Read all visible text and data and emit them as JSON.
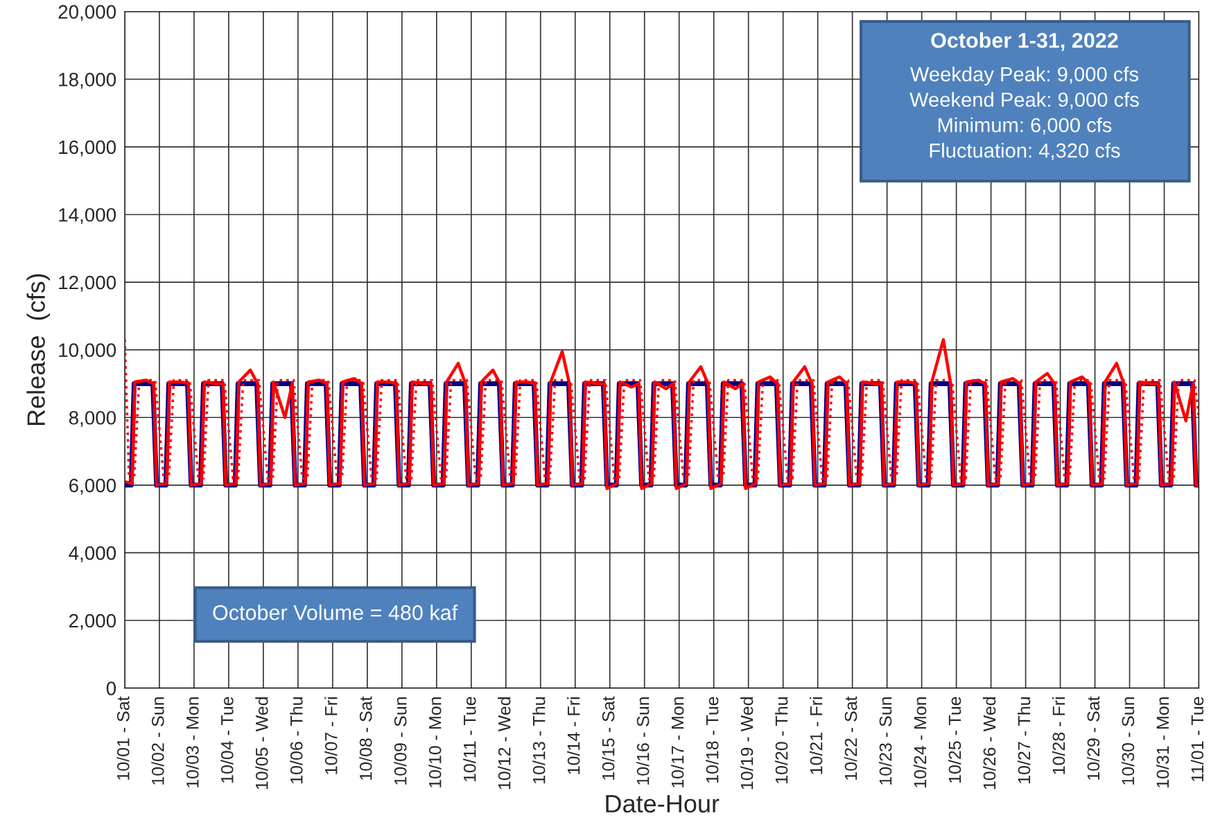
{
  "chart_data": {
    "type": "line",
    "xlabel": "Date-Hour",
    "ylabel": "Release  (cfs)",
    "xlim": [
      "2022-10-01",
      "2022-11-01"
    ],
    "ylim": [
      0,
      20000
    ],
    "xticks": [
      {
        "value": "2022-10-01",
        "label": "10/01 - Sat"
      },
      {
        "value": "2022-10-02",
        "label": "10/02 - Sun"
      },
      {
        "value": "2022-10-03",
        "label": "10/03 - Mon"
      },
      {
        "value": "2022-10-04",
        "label": "10/04 - Tue"
      },
      {
        "value": "2022-10-05",
        "label": "10/05 - Wed"
      },
      {
        "value": "2022-10-06",
        "label": "10/06 - Thu"
      },
      {
        "value": "2022-10-07",
        "label": "10/07 - Fri"
      },
      {
        "value": "2022-10-08",
        "label": "10/08 - Sat"
      },
      {
        "value": "2022-10-09",
        "label": "10/09 - Sun"
      },
      {
        "value": "2022-10-10",
        "label": "10/10 - Mon"
      },
      {
        "value": "2022-10-11",
        "label": "10/11 - Tue"
      },
      {
        "value": "2022-10-12",
        "label": "10/12 - Wed"
      },
      {
        "value": "2022-10-13",
        "label": "10/13 - Thu"
      },
      {
        "value": "2022-10-14",
        "label": "10/14 - Fri"
      },
      {
        "value": "2022-10-15",
        "label": "10/15 - Sat"
      },
      {
        "value": "2022-10-16",
        "label": "10/16 - Sun"
      },
      {
        "value": "2022-10-17",
        "label": "10/17 - Mon"
      },
      {
        "value": "2022-10-18",
        "label": "10/18 - Tue"
      },
      {
        "value": "2022-10-19",
        "label": "10/19 - Wed"
      },
      {
        "value": "2022-10-20",
        "label": "10/20 - Thu"
      },
      {
        "value": "2022-10-21",
        "label": "10/21 - Fri"
      },
      {
        "value": "2022-10-22",
        "label": "10/22 - Sat"
      },
      {
        "value": "2022-10-23",
        "label": "10/23 - Sun"
      },
      {
        "value": "2022-10-24",
        "label": "10/24 - Mon"
      },
      {
        "value": "2022-10-25",
        "label": "10/25 - Tue"
      },
      {
        "value": "2022-10-26",
        "label": "10/26 - Wed"
      },
      {
        "value": "2022-10-27",
        "label": "10/27 - Thu"
      },
      {
        "value": "2022-10-28",
        "label": "10/28 - Fri"
      },
      {
        "value": "2022-10-29",
        "label": "10/29 - Sat"
      },
      {
        "value": "2022-10-30",
        "label": "10/30 - Sun"
      },
      {
        "value": "2022-10-31",
        "label": "10/31 - Mon"
      },
      {
        "value": "2022-11-01",
        "label": "11/01 - Tue"
      }
    ],
    "yticks": [
      0,
      {
        "value": 2000,
        "label": "2,000"
      },
      {
        "value": 4000,
        "label": "4,000"
      },
      {
        "value": 6000,
        "label": "6,000"
      },
      {
        "value": 8000,
        "label": "8,000"
      },
      {
        "value": 10000,
        "label": "10,000"
      },
      {
        "value": 12000,
        "label": "12,000"
      },
      {
        "value": 14000,
        "label": "14,000"
      },
      {
        "value": 16000,
        "label": "16,000"
      },
      {
        "value": 18000,
        "label": "18,000"
      },
      {
        "value": 20000,
        "label": "20,000"
      }
    ],
    "grid": true,
    "marker": "none",
    "annotations": [
      "October 1-31, 2022",
      "Weekday Peak: 9,000 cfs\nWeekend Peak: 9,000 cfs\nMinimum: 6,000 cfs\nFluctuation: 4,320 cfs",
      "October Volume = 480 kaf"
    ],
    "series": [
      {
        "color": "#00008b",
        "line_style": "solid",
        "x": [
          "2022-10-01T00:00",
          "2022-10-01T04:30",
          "2022-10-01T06:30",
          "2022-10-01T19:30",
          "2022-10-01T22:00",
          "2022-10-02T04:30",
          "2022-10-02T06:30",
          "2022-10-02T19:30",
          "2022-10-02T22:00",
          "2022-10-03T04:30",
          "2022-10-03T06:30",
          "2022-10-03T19:30",
          "2022-10-03T22:00",
          "2022-10-04T04:30",
          "2022-10-04T06:30",
          "2022-10-04T19:30",
          "2022-10-04T22:00",
          "2022-10-05T04:30",
          "2022-10-05T06:30",
          "2022-10-05T19:30",
          "2022-10-05T22:00",
          "2022-10-06T04:30",
          "2022-10-06T06:30",
          "2022-10-06T19:30",
          "2022-10-06T22:00",
          "2022-10-07T04:30",
          "2022-10-07T06:30",
          "2022-10-07T19:30",
          "2022-10-07T22:00",
          "2022-10-08T04:30",
          "2022-10-08T06:30",
          "2022-10-08T19:30",
          "2022-10-08T22:00",
          "2022-10-09T04:30",
          "2022-10-09T06:30",
          "2022-10-09T19:30",
          "2022-10-09T22:00",
          "2022-10-10T04:30",
          "2022-10-10T06:30",
          "2022-10-10T19:30",
          "2022-10-10T22:00",
          "2022-10-11T04:30",
          "2022-10-11T06:30",
          "2022-10-11T19:30",
          "2022-10-11T22:00",
          "2022-10-12T04:30",
          "2022-10-12T06:30",
          "2022-10-12T19:30",
          "2022-10-12T22:00",
          "2022-10-13T04:30",
          "2022-10-13T06:30",
          "2022-10-13T19:30",
          "2022-10-13T22:00",
          "2022-10-14T04:30",
          "2022-10-14T06:30",
          "2022-10-14T19:30",
          "2022-10-14T22:00",
          "2022-10-15T04:30",
          "2022-10-15T06:30",
          "2022-10-15T19:30",
          "2022-10-15T22:00",
          "2022-10-16T04:30",
          "2022-10-16T06:30",
          "2022-10-16T19:30",
          "2022-10-16T22:00",
          "2022-10-17T04:30",
          "2022-10-17T06:30",
          "2022-10-17T19:30",
          "2022-10-17T22:00",
          "2022-10-18T04:30",
          "2022-10-18T06:30",
          "2022-10-18T19:30",
          "2022-10-18T22:00",
          "2022-10-19T04:30",
          "2022-10-19T06:30",
          "2022-10-19T19:30",
          "2022-10-19T22:00",
          "2022-10-20T04:30",
          "2022-10-20T06:30",
          "2022-10-20T19:30",
          "2022-10-20T22:00",
          "2022-10-21T04:30",
          "2022-10-21T06:30",
          "2022-10-21T19:30",
          "2022-10-21T22:00",
          "2022-10-22T04:30",
          "2022-10-22T06:30",
          "2022-10-22T19:30",
          "2022-10-22T22:00",
          "2022-10-23T04:30",
          "2022-10-23T06:30",
          "2022-10-23T19:30",
          "2022-10-23T22:00",
          "2022-10-24T04:30",
          "2022-10-24T06:30",
          "2022-10-24T19:30",
          "2022-10-24T22:00",
          "2022-10-25T04:30",
          "2022-10-25T06:30",
          "2022-10-25T19:30",
          "2022-10-25T22:00",
          "2022-10-26T04:30",
          "2022-10-26T06:30",
          "2022-10-26T19:30",
          "2022-10-26T22:00",
          "2022-10-27T04:30",
          "2022-10-27T06:30",
          "2022-10-27T19:30",
          "2022-10-27T22:00",
          "2022-10-28T04:30",
          "2022-10-28T06:30",
          "2022-10-28T19:30",
          "2022-10-28T22:00",
          "2022-10-29T04:30",
          "2022-10-29T06:30",
          "2022-10-29T19:30",
          "2022-10-29T22:00",
          "2022-10-30T04:30",
          "2022-10-30T06:30",
          "2022-10-30T19:30",
          "2022-10-30T22:00",
          "2022-10-31T04:30",
          "2022-10-31T06:30",
          "2022-10-31T19:30",
          "2022-10-31T22:00",
          "2022-11-01T00:00"
        ],
        "values": [
          6000,
          6000,
          9000,
          9000,
          6000,
          6000,
          9000,
          9000,
          6000,
          6000,
          9000,
          9000,
          6000,
          6000,
          9000,
          9000,
          6000,
          6000,
          9000,
          9000,
          6000,
          6000,
          9000,
          9000,
          6000,
          6000,
          9000,
          9000,
          6000,
          6000,
          9000,
          9000,
          6000,
          6000,
          9000,
          9000,
          6000,
          6000,
          9000,
          9000,
          6000,
          6000,
          9000,
          9000,
          6000,
          6000,
          9000,
          9000,
          6000,
          6000,
          9000,
          9000,
          6000,
          6000,
          9000,
          9000,
          6000,
          6000,
          9000,
          9000,
          6000,
          6000,
          9000,
          9000,
          6000,
          6000,
          9000,
          9000,
          6000,
          6000,
          9000,
          9000,
          6000,
          6000,
          9000,
          9000,
          6000,
          6000,
          9000,
          9000,
          6000,
          6000,
          9000,
          9000,
          6000,
          6000,
          9000,
          9000,
          6000,
          6000,
          9000,
          9000,
          6000,
          6000,
          9000,
          9000,
          6000,
          6000,
          9000,
          9000,
          6000,
          6000,
          9000,
          9000,
          6000,
          6000,
          9000,
          9000,
          6000,
          6000,
          9000,
          9000,
          6000,
          6000,
          9000,
          9000,
          6000,
          6000,
          9000,
          9000,
          6000,
          6000,
          9000,
          9000,
          6000,
          6000
        ]
      },
      {
        "color": "#ff0000",
        "line_style": "solid",
        "x": [
          "2022-10-01T00:00",
          "2022-10-01T05:00",
          "2022-10-01T07:00",
          "2022-10-01T15:00",
          "2022-10-01T20:00",
          "2022-10-01T22:00",
          "2022-10-02T05:00",
          "2022-10-02T07:00",
          "2022-10-02T15:00",
          "2022-10-02T20:00",
          "2022-10-02T22:00",
          "2022-10-03T05:00",
          "2022-10-03T07:00",
          "2022-10-03T15:00",
          "2022-10-03T20:00",
          "2022-10-03T22:00",
          "2022-10-04T05:00",
          "2022-10-04T07:00",
          "2022-10-04T15:00",
          "2022-10-04T20:00",
          "2022-10-04T22:00",
          "2022-10-05T05:00",
          "2022-10-05T07:00",
          "2022-10-05T15:00",
          "2022-10-05T20:00",
          "2022-10-05T22:00",
          "2022-10-06T05:00",
          "2022-10-06T07:00",
          "2022-10-06T15:00",
          "2022-10-06T20:00",
          "2022-10-06T22:00",
          "2022-10-07T05:00",
          "2022-10-07T07:00",
          "2022-10-07T15:00",
          "2022-10-07T20:00",
          "2022-10-07T22:00",
          "2022-10-08T05:00",
          "2022-10-08T07:00",
          "2022-10-08T15:00",
          "2022-10-08T20:00",
          "2022-10-08T22:00",
          "2022-10-09T05:00",
          "2022-10-09T07:00",
          "2022-10-09T15:00",
          "2022-10-09T20:00",
          "2022-10-09T22:00",
          "2022-10-10T05:00",
          "2022-10-10T07:00",
          "2022-10-10T15:00",
          "2022-10-10T20:00",
          "2022-10-10T22:00",
          "2022-10-11T05:00",
          "2022-10-11T07:00",
          "2022-10-11T15:00",
          "2022-10-11T20:00",
          "2022-10-11T22:00",
          "2022-10-12T05:00",
          "2022-10-12T07:00",
          "2022-10-12T15:00",
          "2022-10-12T20:00",
          "2022-10-12T22:00",
          "2022-10-13T05:00",
          "2022-10-13T07:00",
          "2022-10-13T15:00",
          "2022-10-13T20:00",
          "2022-10-13T22:00",
          "2022-10-14T05:00",
          "2022-10-14T07:00",
          "2022-10-14T15:00",
          "2022-10-14T20:00",
          "2022-10-14T22:00",
          "2022-10-15T05:00",
          "2022-10-15T07:00",
          "2022-10-15T15:00",
          "2022-10-15T20:00",
          "2022-10-15T22:00",
          "2022-10-16T05:00",
          "2022-10-16T07:00",
          "2022-10-16T15:00",
          "2022-10-16T20:00",
          "2022-10-16T22:00",
          "2022-10-17T05:00",
          "2022-10-17T07:00",
          "2022-10-17T15:00",
          "2022-10-17T20:00",
          "2022-10-17T22:00",
          "2022-10-18T05:00",
          "2022-10-18T07:00",
          "2022-10-18T15:00",
          "2022-10-18T20:00",
          "2022-10-18T22:00",
          "2022-10-19T05:00",
          "2022-10-19T07:00",
          "2022-10-19T15:00",
          "2022-10-19T20:00",
          "2022-10-19T22:00",
          "2022-10-20T05:00",
          "2022-10-20T07:00",
          "2022-10-20T15:00",
          "2022-10-20T20:00",
          "2022-10-20T22:00",
          "2022-10-21T05:00",
          "2022-10-21T07:00",
          "2022-10-21T15:00",
          "2022-10-21T20:00",
          "2022-10-21T22:00",
          "2022-10-22T05:00",
          "2022-10-22T07:00",
          "2022-10-22T15:00",
          "2022-10-22T20:00",
          "2022-10-22T22:00",
          "2022-10-23T05:00",
          "2022-10-23T07:00",
          "2022-10-23T15:00",
          "2022-10-23T20:00",
          "2022-10-23T22:00",
          "2022-10-24T05:00",
          "2022-10-24T07:00",
          "2022-10-24T15:00",
          "2022-10-24T20:00",
          "2022-10-24T22:00",
          "2022-10-25T05:00",
          "2022-10-25T07:00",
          "2022-10-25T15:00",
          "2022-10-25T20:00",
          "2022-10-25T22:00",
          "2022-10-26T05:00",
          "2022-10-26T07:00",
          "2022-10-26T15:00",
          "2022-10-26T20:00",
          "2022-10-26T22:00",
          "2022-10-27T05:00",
          "2022-10-27T07:00",
          "2022-10-27T15:00",
          "2022-10-27T20:00",
          "2022-10-27T22:00",
          "2022-10-28T05:00",
          "2022-10-28T07:00",
          "2022-10-28T15:00",
          "2022-10-28T20:00",
          "2022-10-28T22:00",
          "2022-10-29T05:00",
          "2022-10-29T07:00",
          "2022-10-29T15:00",
          "2022-10-29T20:00",
          "2022-10-29T22:00",
          "2022-10-30T05:00",
          "2022-10-30T07:00",
          "2022-10-30T15:00",
          "2022-10-30T20:00",
          "2022-10-30T22:00",
          "2022-10-31T05:00",
          "2022-10-31T07:00",
          "2022-10-31T15:00",
          "2022-10-31T20:00",
          "2022-10-31T22:00",
          "2022-11-01T00:00"
        ],
        "values": [
          6100,
          6050,
          9050,
          9100,
          9000,
          6000,
          6050,
          9050,
          9050,
          9000,
          6000,
          6050,
          9050,
          9000,
          9000,
          6000,
          6050,
          9050,
          9400,
          9000,
          6000,
          6050,
          9050,
          8000,
          9000,
          6000,
          6050,
          9050,
          9100,
          9000,
          6000,
          6050,
          9050,
          9150,
          9000,
          6000,
          6050,
          9050,
          9050,
          9000,
          6000,
          6050,
          9050,
          9000,
          9000,
          6000,
          6050,
          9050,
          9600,
          9000,
          6000,
          6050,
          9050,
          9400,
          9000,
          6000,
          6050,
          9050,
          9050,
          9000,
          6000,
          6050,
          9050,
          9950,
          9000,
          6000,
          6050,
          9050,
          9000,
          9000,
          5900,
          6050,
          9050,
          8900,
          9000,
          5900,
          6050,
          9050,
          8850,
          9000,
          5900,
          6050,
          9050,
          9500,
          9000,
          5900,
          6050,
          9050,
          8850,
          9000,
          5900,
          6050,
          9050,
          9200,
          9000,
          6000,
          6050,
          9050,
          9500,
          9000,
          6000,
          6050,
          9050,
          9200,
          9000,
          6000,
          6050,
          9050,
          9000,
          9000,
          6000,
          6050,
          9050,
          9050,
          9000,
          6000,
          6050,
          9050,
          10300,
          9000,
          6000,
          6050,
          9050,
          9100,
          9000,
          6000,
          6050,
          9050,
          9150,
          9000,
          6000,
          6050,
          9050,
          9300,
          9000,
          6000,
          6050,
          9050,
          9200,
          9000,
          6000,
          6050,
          9050,
          9600,
          9000,
          6000,
          6050,
          9050,
          9000,
          9000,
          6000,
          6050,
          9050,
          7900,
          9000,
          6000,
          6000
        ]
      },
      {
        "color": "#ff0000",
        "line_style": "dotted",
        "x": [
          "2022-10-01T00:00",
          "2022-10-01T03:00",
          "2022-10-01T06:30",
          "2022-10-01T10:00",
          "2022-10-01T21:00",
          "2022-10-02T03:00",
          "2022-10-02T06:30",
          "2022-10-02T10:00",
          "2022-10-02T21:00",
          "2022-10-03T03:00",
          "2022-10-03T06:30",
          "2022-10-03T10:00",
          "2022-10-03T21:00",
          "2022-10-04T03:00",
          "2022-10-04T06:30",
          "2022-10-04T10:00",
          "2022-10-04T21:00",
          "2022-10-05T03:00",
          "2022-10-05T06:30",
          "2022-10-05T10:00",
          "2022-10-05T21:00",
          "2022-10-06T03:00",
          "2022-10-06T06:30",
          "2022-10-06T10:00",
          "2022-10-06T21:00",
          "2022-10-07T03:00",
          "2022-10-07T06:30",
          "2022-10-07T10:00",
          "2022-10-07T21:00",
          "2022-10-08T03:00",
          "2022-10-08T06:30",
          "2022-10-08T10:00",
          "2022-10-08T21:00",
          "2022-10-09T03:00",
          "2022-10-09T06:30",
          "2022-10-09T10:00",
          "2022-10-09T21:00",
          "2022-10-10T03:00",
          "2022-10-10T06:30",
          "2022-10-10T10:00",
          "2022-10-10T21:00",
          "2022-10-11T03:00",
          "2022-10-11T06:30",
          "2022-10-11T10:00",
          "2022-10-11T21:00",
          "2022-10-12T03:00",
          "2022-10-12T06:30",
          "2022-10-12T10:00",
          "2022-10-12T21:00",
          "2022-10-13T03:00",
          "2022-10-13T06:30",
          "2022-10-13T10:00",
          "2022-10-13T21:00",
          "2022-10-14T03:00",
          "2022-10-14T06:30",
          "2022-10-14T10:00",
          "2022-10-14T21:00",
          "2022-10-15T03:00",
          "2022-10-15T06:30",
          "2022-10-15T10:00",
          "2022-10-15T21:00",
          "2022-10-16T03:00",
          "2022-10-16T06:30",
          "2022-10-16T10:00",
          "2022-10-16T21:00",
          "2022-10-17T03:00",
          "2022-10-17T06:30",
          "2022-10-17T10:00",
          "2022-10-17T21:00",
          "2022-10-18T03:00",
          "2022-10-18T06:30",
          "2022-10-18T10:00",
          "2022-10-18T21:00",
          "2022-10-19T03:00",
          "2022-10-19T06:30",
          "2022-10-19T10:00",
          "2022-10-19T21:00",
          "2022-10-20T03:00",
          "2022-10-20T06:30",
          "2022-10-20T10:00",
          "2022-10-20T21:00",
          "2022-10-21T03:00",
          "2022-10-21T06:30",
          "2022-10-21T10:00",
          "2022-10-21T21:00",
          "2022-10-22T03:00",
          "2022-10-22T06:30",
          "2022-10-22T10:00",
          "2022-10-22T21:00",
          "2022-10-23T03:00",
          "2022-10-23T06:30",
          "2022-10-23T10:00",
          "2022-10-23T21:00",
          "2022-10-24T03:00",
          "2022-10-24T06:30",
          "2022-10-24T10:00",
          "2022-10-24T21:00",
          "2022-10-25T03:00",
          "2022-10-25T06:30",
          "2022-10-25T10:00",
          "2022-10-25T21:00",
          "2022-10-26T03:00",
          "2022-10-26T06:30",
          "2022-10-26T10:00",
          "2022-10-26T21:00",
          "2022-10-27T03:00",
          "2022-10-27T06:30",
          "2022-10-27T10:00",
          "2022-10-27T21:00",
          "2022-10-28T03:00",
          "2022-10-28T06:30",
          "2022-10-28T10:00",
          "2022-10-28T21:00",
          "2022-10-29T03:00",
          "2022-10-29T06:30",
          "2022-10-29T10:00",
          "2022-10-29T21:00",
          "2022-10-30T03:00",
          "2022-10-30T06:30",
          "2022-10-30T10:00",
          "2022-10-30T21:00",
          "2022-10-31T03:00",
          "2022-10-31T06:30",
          "2022-10-31T10:00",
          "2022-10-31T21:00",
          "2022-11-01T00:00"
        ],
        "values": [
          10300,
          6200,
          6200,
          9100,
          9100,
          6200,
          6200,
          9100,
          9100,
          6200,
          6200,
          9100,
          9100,
          6200,
          6200,
          9100,
          9100,
          6200,
          6200,
          9100,
          9100,
          6200,
          6200,
          9100,
          9100,
          6200,
          6200,
          9100,
          9100,
          6200,
          6200,
          9100,
          9100,
          6200,
          6200,
          9100,
          9100,
          6200,
          6200,
          9100,
          9100,
          6200,
          6200,
          9100,
          9100,
          6200,
          6200,
          9100,
          9100,
          6200,
          6200,
          9100,
          9100,
          6200,
          6200,
          9100,
          9100,
          6200,
          6200,
          9100,
          9100,
          6200,
          6200,
          9100,
          9100,
          6200,
          6200,
          9100,
          9100,
          6200,
          6200,
          9100,
          9100,
          6200,
          6200,
          9100,
          9100,
          6200,
          6200,
          9100,
          9100,
          6200,
          6200,
          9100,
          9100,
          6200,
          6200,
          9100,
          9100,
          6200,
          6200,
          9100,
          9100,
          6200,
          6200,
          9100,
          9100,
          6200,
          6200,
          9100,
          9100,
          6200,
          6200,
          9100,
          9100,
          6200,
          6200,
          9100,
          9100,
          6200,
          6200,
          9100,
          9100,
          6200,
          6200,
          9100,
          9100,
          6200,
          6200,
          9100,
          9100,
          6200,
          6200,
          9100,
          9100,
          8000
        ]
      }
    ]
  }
}
